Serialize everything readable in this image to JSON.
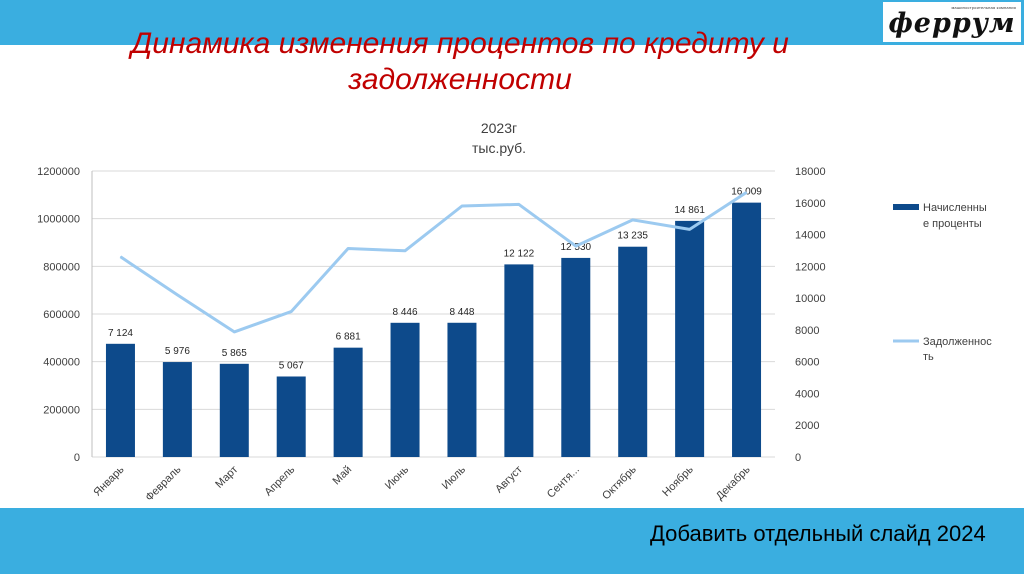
{
  "logo": {
    "tagline": "машиностроительная компания",
    "text": "феррум"
  },
  "slide_title": "Динамика изменения процентов по кредиту и задолженности",
  "footer_note": "Добавить отдельный слайд 2024",
  "colors": {
    "bar": "#0d4a8b",
    "line": "#9ccaf0",
    "band": "#3aaee0",
    "title": "#c00000",
    "grid": "#d9d9d9"
  },
  "chart_data": {
    "type": "bar",
    "title": "2023г",
    "subtitle": "тыс.руб.",
    "categories": [
      "Январь",
      "Февраль",
      "Март",
      "Апрель",
      "Май",
      "Июнь",
      "Июль",
      "Август",
      "Сентя...",
      "Октябрь",
      "Ноябрь",
      "Декабрь"
    ],
    "series": [
      {
        "name": "Начисленные проценты",
        "type": "bar",
        "axis": "right",
        "values": [
          7124,
          5976,
          5865,
          5067,
          6881,
          8446,
          8448,
          12122,
          12530,
          13235,
          14861,
          16009
        ],
        "labels": [
          "7 124",
          "5 976",
          "5 865",
          "5 067",
          "6 881",
          "8 446",
          "8 448",
          "12 122",
          "12 530",
          "13 235",
          "14 861",
          "16 009"
        ]
      },
      {
        "name": "Задолженность",
        "type": "line",
        "axis": "left",
        "values": [
          840000,
          680000,
          525000,
          610000,
          875000,
          865000,
          1053000,
          1060000,
          885000,
          995000,
          955000,
          1110000
        ]
      }
    ],
    "legend": [
      "Начисленны е проценты",
      "Задолженнос ть"
    ],
    "legend_position": "right",
    "y_left": {
      "min": 0,
      "max": 1200000,
      "ticks": [
        "0",
        "200000",
        "400000",
        "600000",
        "800000",
        "1000000",
        "1200000"
      ]
    },
    "y_right": {
      "min": 0,
      "max": 18000,
      "ticks": [
        "0",
        "2000",
        "4000",
        "6000",
        "8000",
        "10000",
        "12000",
        "14000",
        "16000",
        "18000"
      ]
    },
    "grid": true
  }
}
